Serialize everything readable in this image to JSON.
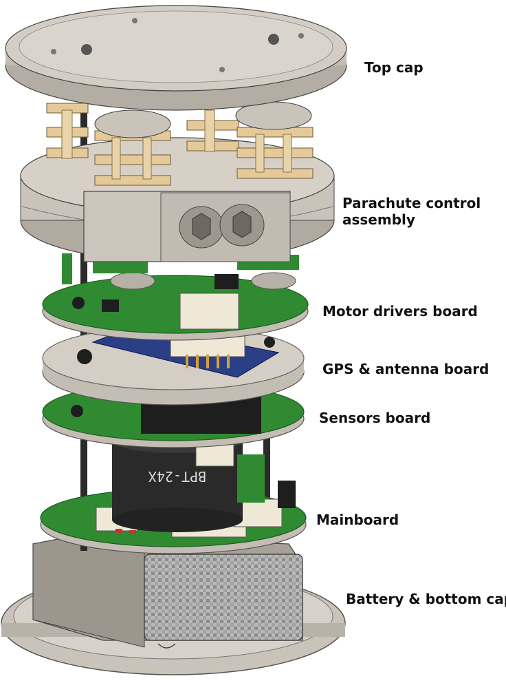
{
  "labels": {
    "top_cap": "Top cap",
    "parachute": "Parachute control assembly",
    "motor_drivers": "Motor drivers board",
    "gps": "GPS & antenna board",
    "sensors": "Sensors board",
    "mainboard": "Mainboard",
    "battery": "Battery & bottom cap"
  },
  "part_markings": {
    "battery_brand": "BPT-24X"
  },
  "colors": {
    "grey_part": "#c9c3b9",
    "grey_dark": "#8f8a82",
    "pcb_green": "#2f8a32",
    "pcb_board": "#c4bdb3",
    "brass": "#e6c999",
    "black": "#1e1e1e",
    "carbon": "#9a9a9a"
  }
}
